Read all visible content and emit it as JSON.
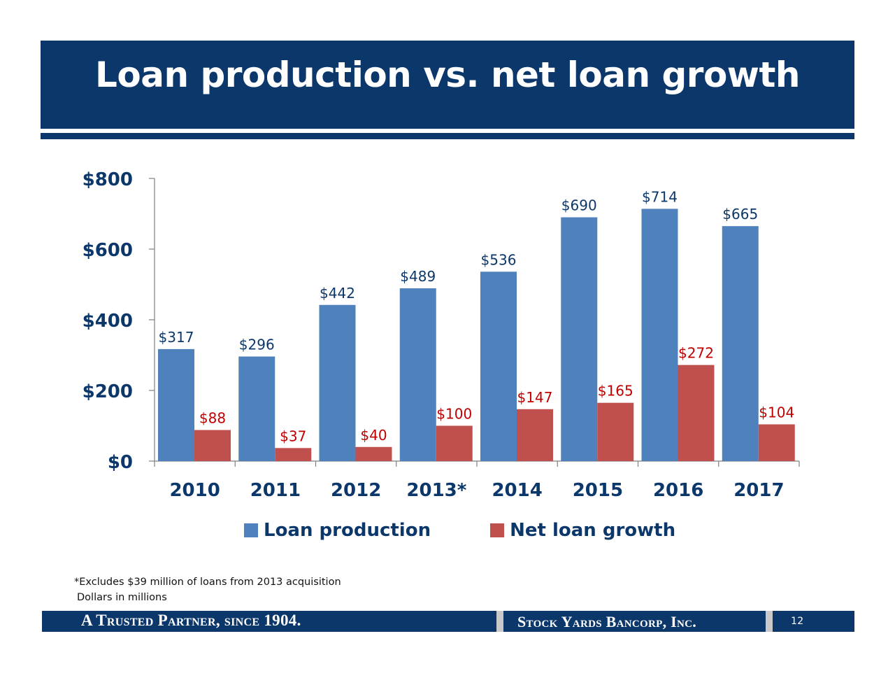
{
  "header": {
    "title": "Loan production vs. net loan growth"
  },
  "chart_data": {
    "type": "bar",
    "categories": [
      "2010",
      "2011",
      "2012",
      "2013*",
      "2014",
      "2015",
      "2016",
      "2017"
    ],
    "series": [
      {
        "name": "Loan production",
        "values": [
          317,
          296,
          442,
          489,
          536,
          690,
          714,
          665
        ],
        "color": "#4f81bd",
        "labels": [
          "$317",
          "$296",
          "$442",
          "$489",
          "$536",
          "$690",
          "$714",
          "$665"
        ],
        "label_color": "#0b376b"
      },
      {
        "name": "Net loan growth",
        "values": [
          88,
          37,
          40,
          100,
          147,
          165,
          272,
          104
        ],
        "color": "#c0504d",
        "labels": [
          "$88",
          "$37",
          "$40",
          "$100",
          "$147",
          "$165",
          "$272",
          "$104"
        ],
        "label_color": "#c00000"
      }
    ],
    "yticks": [
      0,
      200,
      400,
      600,
      800
    ],
    "ytick_labels": [
      "$0",
      "$200",
      "$400",
      "$600",
      "$800"
    ],
    "ylim": [
      0,
      800
    ],
    "grid": false,
    "legend_position": "bottom"
  },
  "footnotes": {
    "acquisition": "*Excludes $39 million of loans from 2013 acquisition",
    "units": "Dollars in millions"
  },
  "footer": {
    "tagline": "A Trusted Partner, since 1904.",
    "company": "Stock Yards Bancorp, Inc.",
    "page_number": "12"
  },
  "colors": {
    "navy": "#0b376b",
    "blue": "#4f81bd",
    "red": "#c0504d",
    "gray": "#c9c9c9"
  }
}
